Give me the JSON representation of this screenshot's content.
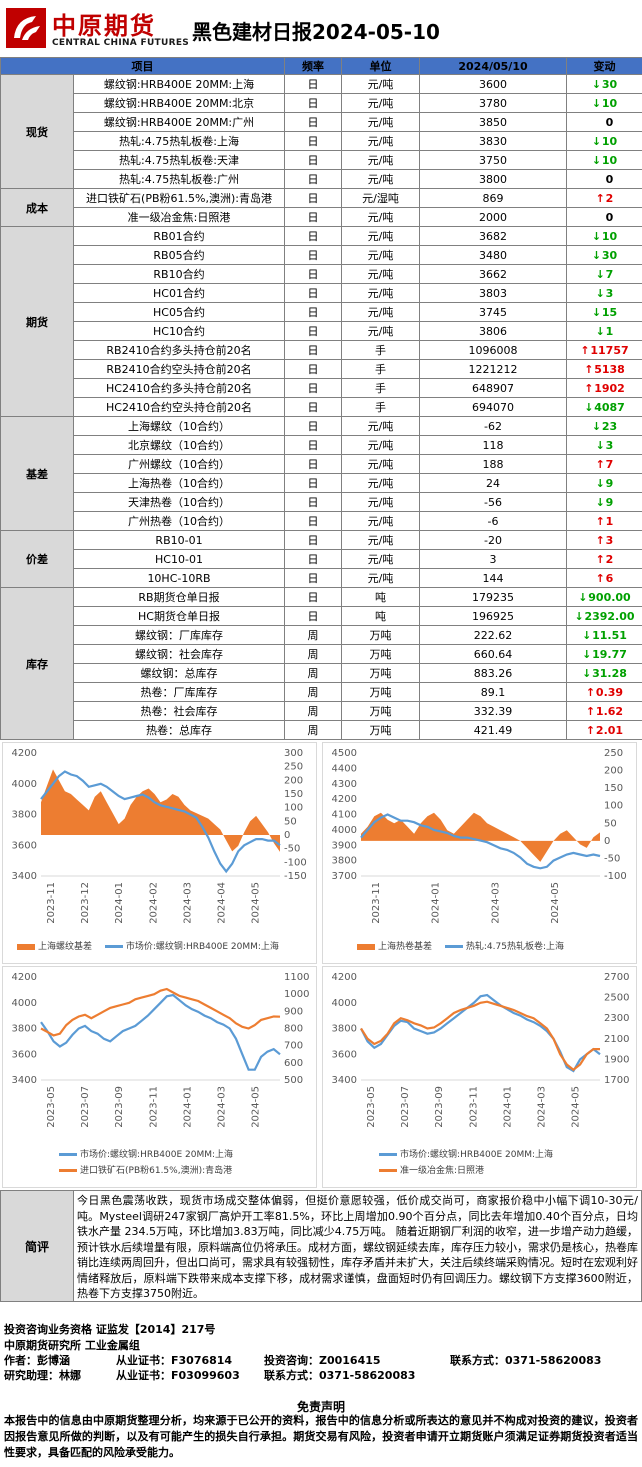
{
  "header": {
    "logo_cn": "中原期货",
    "logo_en": "CENTRAL CHINA FUTURES",
    "title": "黑色建材日报2024-05-10"
  },
  "table": {
    "columns": [
      "项目",
      "频率",
      "单位",
      "2024/05/10",
      "变动"
    ],
    "groups": [
      {
        "category": "现货",
        "rows": [
          {
            "item": "螺纹钢:HRB400E 20MM:上海",
            "freq": "日",
            "unit": "元/吨",
            "value": "3600",
            "dir": "down",
            "change": "30"
          },
          {
            "item": "螺纹钢:HRB400E 20MM:北京",
            "freq": "日",
            "unit": "元/吨",
            "value": "3780",
            "dir": "down",
            "change": "10"
          },
          {
            "item": "螺纹钢:HRB400E 20MM:广州",
            "freq": "日",
            "unit": "元/吨",
            "value": "3850",
            "dir": "none",
            "change": "0"
          },
          {
            "item": "热轧:4.75热轧板卷:上海",
            "freq": "日",
            "unit": "元/吨",
            "value": "3830",
            "dir": "down",
            "change": "10"
          },
          {
            "item": "热轧:4.75热轧板卷:天津",
            "freq": "日",
            "unit": "元/吨",
            "value": "3750",
            "dir": "down",
            "change": "10"
          },
          {
            "item": "热轧:4.75热轧板卷:广州",
            "freq": "日",
            "unit": "元/吨",
            "value": "3800",
            "dir": "none",
            "change": "0"
          }
        ]
      },
      {
        "category": "成本",
        "rows": [
          {
            "item": "进口铁矿石(PB粉61.5%,澳洲):青岛港",
            "freq": "日",
            "unit": "元/湿吨",
            "value": "869",
            "dir": "up",
            "change": "2"
          },
          {
            "item": "准一级冶金焦:日照港",
            "freq": "日",
            "unit": "元/吨",
            "value": "2000",
            "dir": "none",
            "change": "0"
          }
        ]
      },
      {
        "category": "期货",
        "rows": [
          {
            "item": "RB01合约",
            "freq": "日",
            "unit": "元/吨",
            "value": "3682",
            "dir": "down",
            "change": "10"
          },
          {
            "item": "RB05合约",
            "freq": "日",
            "unit": "元/吨",
            "value": "3480",
            "dir": "down",
            "change": "30"
          },
          {
            "item": "RB10合约",
            "freq": "日",
            "unit": "元/吨",
            "value": "3662",
            "dir": "down",
            "change": "7"
          },
          {
            "item": "HC01合约",
            "freq": "日",
            "unit": "元/吨",
            "value": "3803",
            "dir": "down",
            "change": "3"
          },
          {
            "item": "HC05合约",
            "freq": "日",
            "unit": "元/吨",
            "value": "3745",
            "dir": "down",
            "change": "15"
          },
          {
            "item": "HC10合约",
            "freq": "日",
            "unit": "元/吨",
            "value": "3806",
            "dir": "down",
            "change": "1"
          },
          {
            "item": "RB2410合约多头持仓前20名",
            "freq": "日",
            "unit": "手",
            "value": "1096008",
            "dir": "up",
            "change": "11757"
          },
          {
            "item": "RB2410合约空头持仓前20名",
            "freq": "日",
            "unit": "手",
            "value": "1221212",
            "dir": "up",
            "change": "5138"
          },
          {
            "item": "HC2410合约多头持仓前20名",
            "freq": "日",
            "unit": "手",
            "value": "648907",
            "dir": "up",
            "change": "1902"
          },
          {
            "item": "HC2410合约空头持仓前20名",
            "freq": "日",
            "unit": "手",
            "value": "694070",
            "dir": "down",
            "change": "4087"
          }
        ]
      },
      {
        "category": "基差",
        "rows": [
          {
            "item": "上海螺纹（10合约）",
            "freq": "日",
            "unit": "元/吨",
            "value": "-62",
            "dir": "down",
            "change": "23"
          },
          {
            "item": "北京螺纹（10合约）",
            "freq": "日",
            "unit": "元/吨",
            "value": "118",
            "dir": "down",
            "change": "3"
          },
          {
            "item": "广州螺纹（10合约）",
            "freq": "日",
            "unit": "元/吨",
            "value": "188",
            "dir": "up",
            "change": "7"
          },
          {
            "item": "上海热卷（10合约）",
            "freq": "日",
            "unit": "元/吨",
            "value": "24",
            "dir": "down",
            "change": "9"
          },
          {
            "item": "天津热卷（10合约）",
            "freq": "日",
            "unit": "元/吨",
            "value": "-56",
            "dir": "down",
            "change": "9"
          },
          {
            "item": "广州热卷（10合约）",
            "freq": "日",
            "unit": "元/吨",
            "value": "-6",
            "dir": "up",
            "change": "1"
          }
        ]
      },
      {
        "category": "价差",
        "rows": [
          {
            "item": "RB10-01",
            "freq": "日",
            "unit": "元/吨",
            "value": "-20",
            "dir": "up",
            "change": "3"
          },
          {
            "item": "HC10-01",
            "freq": "日",
            "unit": "元/吨",
            "value": "3",
            "dir": "up",
            "change": "2"
          },
          {
            "item": "10HC-10RB",
            "freq": "日",
            "unit": "元/吨",
            "value": "144",
            "dir": "up",
            "change": "6"
          }
        ]
      },
      {
        "category": "库存",
        "rows": [
          {
            "item": "RB期货仓单日报",
            "freq": "日",
            "unit": "吨",
            "value": "179235",
            "dir": "down",
            "change": "900.00"
          },
          {
            "item": "HC期货仓单日报",
            "freq": "日",
            "unit": "吨",
            "value": "196925",
            "dir": "down",
            "change": "2392.00"
          },
          {
            "item": "螺纹钢：厂库库存",
            "freq": "周",
            "unit": "万吨",
            "value": "222.62",
            "dir": "down",
            "change": "11.51"
          },
          {
            "item": "螺纹钢：社会库存",
            "freq": "周",
            "unit": "万吨",
            "value": "660.64",
            "dir": "down",
            "change": "19.77"
          },
          {
            "item": "螺纹钢：总库存",
            "freq": "周",
            "unit": "万吨",
            "value": "883.26",
            "dir": "down",
            "change": "31.28"
          },
          {
            "item": "热卷：厂库库存",
            "freq": "周",
            "unit": "万吨",
            "value": "89.1",
            "dir": "up",
            "change": "0.39"
          },
          {
            "item": "热卷：社会库存",
            "freq": "周",
            "unit": "万吨",
            "value": "332.39",
            "dir": "up",
            "change": "1.62"
          },
          {
            "item": "热卷：总库存",
            "freq": "周",
            "unit": "万吨",
            "value": "421.49",
            "dir": "up",
            "change": "2.01"
          }
        ]
      }
    ]
  },
  "colors": {
    "up": "#e00000",
    "down": "#00a000",
    "orange": "#ed7d31",
    "blue": "#5b9bd5",
    "header_blue": "#4472c4"
  },
  "chart_data": [
    {
      "type": "line",
      "left_axis": {
        "ticks": [
          "4200",
          "4000",
          "3800",
          "3600",
          "3400"
        ],
        "range": [
          3400,
          4200
        ]
      },
      "right_axis": {
        "ticks": [
          "300",
          "250",
          "200",
          "150",
          "100",
          "50",
          "0",
          "-50",
          "-100",
          "-150"
        ],
        "range": [
          -150,
          300
        ]
      },
      "x_ticks": [
        "2023-11",
        "2023-12",
        "2024-01",
        "2024-02",
        "2024-03",
        "2024-04",
        "2024-05"
      ],
      "series": [
        {
          "name": "上海螺纹基差",
          "kind": "area",
          "axis": "right",
          "values": [
            120,
            180,
            240,
            200,
            160,
            150,
            130,
            110,
            90,
            140,
            160,
            120,
            80,
            40,
            60,
            110,
            140,
            160,
            170,
            150,
            120,
            130,
            150,
            140,
            110,
            90,
            80,
            70,
            60,
            40,
            20,
            -20,
            -60,
            -40,
            10,
            50,
            70,
            40,
            10,
            -30,
            -62
          ]
        },
        {
          "name": "市场价:螺纹钢:HRB400E 20MM:上海",
          "kind": "line",
          "axis": "left",
          "values": [
            3900,
            3950,
            4000,
            4050,
            4080,
            4060,
            4050,
            4020,
            3980,
            3990,
            4000,
            3980,
            3950,
            3920,
            3900,
            3910,
            3920,
            3930,
            3910,
            3880,
            3860,
            3850,
            3840,
            3830,
            3820,
            3800,
            3780,
            3720,
            3650,
            3560,
            3480,
            3430,
            3480,
            3560,
            3600,
            3620,
            3640,
            3640,
            3630,
            3630,
            3600
          ]
        }
      ]
    },
    {
      "type": "line",
      "left_axis": {
        "ticks": [
          "4500",
          "4400",
          "4300",
          "4200",
          "4100",
          "4000",
          "3900",
          "3800",
          "3700"
        ],
        "range": [
          3700,
          4500
        ]
      },
      "right_axis": {
        "ticks": [
          "250",
          "200",
          "150",
          "100",
          "50",
          "0",
          "-50",
          "-100"
        ],
        "range": [
          -100,
          250
        ]
      },
      "x_ticks": [
        "2023-11",
        "2024-01",
        "2024-03",
        "2024-05"
      ],
      "series": [
        {
          "name": "上海热卷基差",
          "kind": "area",
          "axis": "right",
          "values": [
            20,
            40,
            70,
            80,
            60,
            50,
            60,
            40,
            20,
            50,
            70,
            80,
            60,
            30,
            20,
            40,
            60,
            80,
            70,
            50,
            40,
            30,
            20,
            10,
            0,
            -20,
            -40,
            -60,
            -30,
            0,
            20,
            30,
            10,
            -10,
            -20,
            10,
            24
          ]
        },
        {
          "name": "热轧:4.75热轧板卷:上海",
          "kind": "line",
          "axis": "left",
          "values": [
            3950,
            4000,
            4050,
            4080,
            4100,
            4080,
            4060,
            4060,
            4050,
            4030,
            4020,
            4000,
            3990,
            3980,
            3960,
            3950,
            3950,
            3940,
            3930,
            3920,
            3900,
            3880,
            3870,
            3850,
            3820,
            3780,
            3760,
            3750,
            3760,
            3800,
            3820,
            3840,
            3850,
            3840,
            3830,
            3840,
            3830
          ]
        }
      ]
    },
    {
      "type": "line",
      "left_axis": {
        "ticks": [
          "4200",
          "4000",
          "3800",
          "3600",
          "3400"
        ],
        "range": [
          3400,
          4200
        ]
      },
      "right_axis": {
        "ticks": [
          "1100",
          "1000",
          "900",
          "800",
          "700",
          "600",
          "500"
        ],
        "range": [
          500,
          1100
        ]
      },
      "x_ticks": [
        "2023-05",
        "2023-07",
        "2023-09",
        "2023-11",
        "2024-01",
        "2024-03",
        "2024-05"
      ],
      "series": [
        {
          "name": "市场价:螺纹钢:HRB400E 20MM:上海",
          "kind": "line",
          "axis": "left",
          "values": [
            3850,
            3780,
            3700,
            3660,
            3690,
            3750,
            3800,
            3820,
            3780,
            3760,
            3720,
            3700,
            3740,
            3780,
            3800,
            3820,
            3860,
            3900,
            3950,
            4000,
            4050,
            4060,
            4020,
            3980,
            3950,
            3930,
            3900,
            3880,
            3850,
            3830,
            3800,
            3720,
            3600,
            3480,
            3480,
            3580,
            3620,
            3640,
            3600
          ]
        },
        {
          "name": "进口铁矿石(PB粉61.5%,澳洲):青岛港",
          "kind": "line",
          "axis": "right",
          "values": [
            800,
            780,
            760,
            770,
            820,
            850,
            870,
            880,
            860,
            880,
            900,
            920,
            930,
            940,
            950,
            970,
            980,
            990,
            1000,
            1020,
            1030,
            1010,
            990,
            980,
            970,
            960,
            940,
            920,
            900,
            880,
            860,
            830,
            810,
            800,
            820,
            850,
            860,
            870,
            869
          ]
        }
      ]
    },
    {
      "type": "line",
      "left_axis": {
        "ticks": [
          "4200",
          "4000",
          "3800",
          "3600",
          "3400"
        ],
        "range": [
          3400,
          4200
        ]
      },
      "right_axis": {
        "ticks": [
          "2700",
          "2500",
          "2300",
          "2100",
          "1900",
          "1700"
        ],
        "range": [
          1700,
          2700
        ]
      },
      "x_ticks": [
        "2023-05",
        "2023-07",
        "2023-09",
        "2023-11",
        "2024-01",
        "2024-03",
        "2024-05"
      ],
      "series": [
        {
          "name": "市场价:螺纹钢:HRB400E 20MM:上海",
          "kind": "line",
          "axis": "left",
          "values": [
            3800,
            3700,
            3650,
            3680,
            3750,
            3820,
            3860,
            3850,
            3800,
            3780,
            3760,
            3770,
            3800,
            3840,
            3880,
            3920,
            3960,
            4000,
            4050,
            4060,
            4020,
            3980,
            3950,
            3920,
            3900,
            3870,
            3850,
            3820,
            3780,
            3720,
            3620,
            3500,
            3470,
            3560,
            3600,
            3640,
            3600
          ]
        },
        {
          "name": "准一级冶金焦:日照港",
          "kind": "line",
          "axis": "right",
          "values": [
            2200,
            2100,
            2050,
            2080,
            2150,
            2250,
            2300,
            2280,
            2250,
            2230,
            2200,
            2210,
            2250,
            2300,
            2350,
            2380,
            2400,
            2420,
            2450,
            2460,
            2440,
            2420,
            2400,
            2380,
            2350,
            2320,
            2300,
            2250,
            2200,
            2100,
            1950,
            1850,
            1800,
            1850,
            1950,
            2000,
            2000
          ]
        }
      ]
    }
  ],
  "comment": {
    "label": "简评",
    "text": "今日黑色震荡收跌，现货市场成交整体偏弱，但挺价意愿较强，低价成交尚可，商家报价稳中小幅下调10-30元/吨。Mysteel调研247家钢厂高炉开工率81.5%，环比上周增加0.90个百分点，同比去年增加0.40个百分点，日均铁水产量 234.5万吨，环比增加3.83万吨，同比减少4.75万吨。 随着近期钢厂利润的收窄，进一步增产动力趋缓，预计铁水后续增量有限，原料端高位仍将承压。成材方面，螺纹钢延续去库，库存压力较小，需求仍是核心，热卷库销比连续两周回升，但出口尚可，需求具有较强韧性，库存矛盾并未扩大，关注后续终端采购情况。短时在宏观利好情绪释放后，原料端下跌带来成本支撑下移，成材需求谨慎，盘面短时仍有回调压力。螺纹钢下方支撑3600附近，热卷下方支撑3750附近。"
  },
  "footer": {
    "qualification": "投资咨询业务资格    证监发【2014】217号",
    "institute": "中原期货研究所    工业金属组",
    "author_label": "作者：彭博涵",
    "cert_label": "从业证书：F3076814",
    "consult_label": "投资咨询：Z0016415",
    "contact_label": "联系方式：0371-58620083",
    "assistant_label": "研究助理：林娜",
    "assistant_cert": "从业证书：F03099603",
    "assistant_contact": "联系方式：0371-58620083",
    "disclaimer_title": "免责声明",
    "disclaimer": "本报告中的信息由中原期货整理分析，均来源于已公开的资料，报告中的信息分析或所表达的意见并不构成对投资的建议，投资者因报告意见所做的判断，以及有可能产生的损失自行承担。期货交易有风险，投资者申请开立期货账户须满足证券期货投资者适当性要求，具备匹配的风险承受能力。"
  }
}
